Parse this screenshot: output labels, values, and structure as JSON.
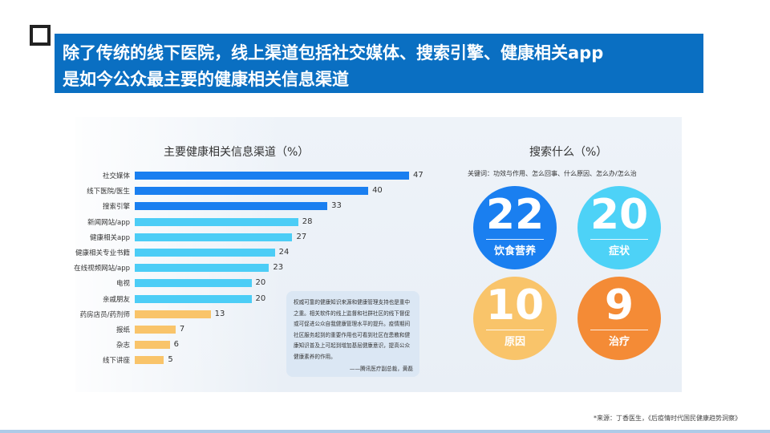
{
  "header": {
    "title_line1": "除了传统的线下医院，线上渠道包括社交媒体、搜索引擎、健康相关app",
    "title_line2": "是如今公众最主要的健康相关信息渠道"
  },
  "chart_data": [
    {
      "type": "bar",
      "orientation": "horizontal",
      "title": "主要健康相关信息渠道（%）",
      "categories": [
        "社交媒体",
        "线下医院/医生",
        "搜索引擎",
        "新闻网站/app",
        "健康相关app",
        "健康相关专业书籍",
        "在线视频网站/app",
        "电视",
        "亲戚朋友",
        "药房店员/药剂师",
        "报纸",
        "杂志",
        "线下讲座"
      ],
      "values": [
        47,
        40,
        33,
        28,
        27,
        24,
        23,
        20,
        20,
        13,
        7,
        6,
        5
      ],
      "colors": [
        "#1a7ff0",
        "#1a7ff0",
        "#1a7ff0",
        "#4ccdf6",
        "#4ccdf6",
        "#4ccdf6",
        "#4ccdf6",
        "#4ccdf6",
        "#4ccdf6",
        "#f9c46a",
        "#f9c46a",
        "#f9c46a",
        "#f9c46a"
      ],
      "xlim": [
        0,
        50
      ]
    },
    {
      "type": "bubble-numbers",
      "title": "搜索什么（%）",
      "keywords_note": "关键词：功效与作用、怎么回事、什么原因、怎么办/怎么治",
      "items": [
        {
          "value": "22",
          "label": "饮食营养",
          "color": "#1a7ff0"
        },
        {
          "value": "20",
          "label": "症状",
          "color": "#4dd2f7"
        },
        {
          "value": "10",
          "label": "原因",
          "color": "#f9c46a"
        },
        {
          "value": "9",
          "label": "治疗",
          "color": "#f48b36"
        }
      ]
    }
  ],
  "quote": {
    "text": "权威可靠的健康知识来源和健康管理支持也是重中之重。相关软件的线上监督和社群社区的线下督促或可促进公众自我健康管理水平的提升。疫情期间社区服务起到的重要作用也可看到社区在患教和健康知识普及上可起到增加基层健康意识，提高公众健康素养的作用。",
    "author": "——腾讯医疗副总裁，黄磊"
  },
  "footer": {
    "source": "*来源：丁香医生，《后疫情时代国民健康趋势洞察》"
  }
}
